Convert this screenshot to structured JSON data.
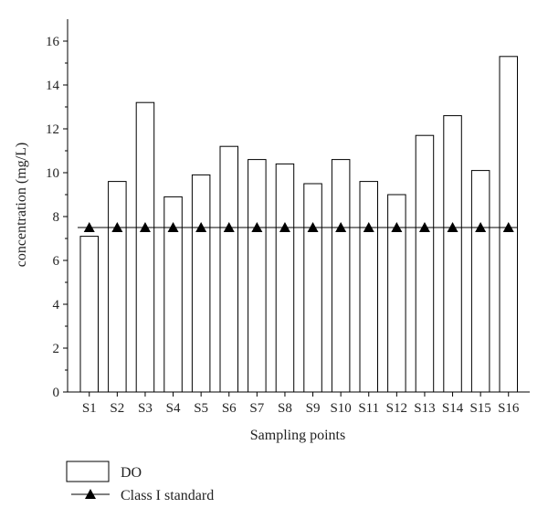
{
  "chart_data": {
    "type": "bar",
    "title": "",
    "xlabel": "Sampling points",
    "ylabel": "concentration (mg/L)",
    "ylim": [
      0,
      17
    ],
    "yticks": [
      0,
      2,
      4,
      6,
      8,
      10,
      12,
      14,
      16
    ],
    "categories": [
      "S1",
      "S2",
      "S3",
      "S4",
      "S5",
      "S6",
      "S7",
      "S8",
      "S9",
      "S10",
      "S11",
      "S12",
      "S13",
      "S14",
      "S15",
      "S16"
    ],
    "series": [
      {
        "name": "DO",
        "type": "bar",
        "color": "#ffffff",
        "values": [
          7.1,
          9.6,
          13.2,
          8.9,
          9.9,
          11.2,
          10.6,
          10.4,
          9.5,
          10.6,
          9.6,
          9.0,
          11.7,
          12.6,
          10.1,
          15.3
        ]
      },
      {
        "name": "Class I standard",
        "type": "line",
        "marker": "triangle",
        "color": "#000000",
        "values": [
          7.5,
          7.5,
          7.5,
          7.5,
          7.5,
          7.5,
          7.5,
          7.5,
          7.5,
          7.5,
          7.5,
          7.5,
          7.5,
          7.5,
          7.5,
          7.5
        ]
      }
    ],
    "legend_position": "bottom-left",
    "grid": false
  }
}
